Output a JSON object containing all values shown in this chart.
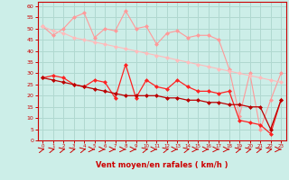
{
  "xlabel": "Vent moyen/en rafales ( km/h )",
  "background_color": "#cceee8",
  "grid_color": "#b0d8d0",
  "x": [
    0,
    1,
    2,
    3,
    4,
    5,
    6,
    7,
    8,
    9,
    10,
    11,
    12,
    13,
    14,
    15,
    16,
    17,
    18,
    19,
    20,
    21,
    22,
    23
  ],
  "line1_y": [
    51,
    47,
    50,
    55,
    57,
    46,
    50,
    49,
    58,
    50,
    51,
    43,
    48,
    49,
    46,
    47,
    47,
    45,
    32,
    11,
    30,
    5,
    18,
    30
  ],
  "line2_y": [
    51,
    49,
    48,
    46,
    45,
    44,
    43,
    42,
    41,
    40,
    39,
    38,
    37,
    36,
    35,
    34,
    33,
    32,
    31,
    30,
    29,
    28,
    27,
    26
  ],
  "line3_y": [
    28,
    29,
    28,
    25,
    24,
    27,
    26,
    19,
    34,
    19,
    27,
    24,
    23,
    27,
    24,
    22,
    22,
    21,
    22,
    9,
    8,
    7,
    3,
    18
  ],
  "line4_y": [
    28,
    27,
    26,
    25,
    24,
    23,
    22,
    21,
    20,
    20,
    20,
    20,
    19,
    19,
    18,
    18,
    17,
    17,
    16,
    16,
    15,
    15,
    5,
    18
  ],
  "line1_color": "#ff9999",
  "line2_color": "#ffbbbb",
  "line3_color": "#ff2222",
  "line4_color": "#bb0000",
  "markersize": 2.5,
  "ylim": [
    0,
    62
  ],
  "yticks": [
    0,
    5,
    10,
    15,
    20,
    25,
    30,
    35,
    40,
    45,
    50,
    55,
    60
  ],
  "xticks": [
    0,
    1,
    2,
    3,
    4,
    5,
    6,
    7,
    8,
    9,
    10,
    11,
    12,
    13,
    14,
    15,
    16,
    17,
    18,
    19,
    20,
    21,
    22,
    23
  ],
  "xlabel_color": "#cc0000",
  "tick_color": "#cc0000",
  "wind_dirs": [
    45,
    45,
    45,
    45,
    45,
    0,
    0,
    0,
    0,
    0,
    45,
    0,
    45,
    0,
    45,
    0,
    0,
    0,
    0,
    45,
    45,
    45,
    45,
    0
  ]
}
